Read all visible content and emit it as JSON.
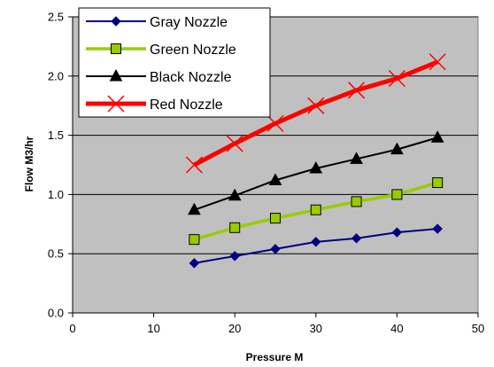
{
  "chart_data": {
    "type": "line",
    "xlabel": "Pressure M",
    "ylabel": "Flow M3/hr",
    "xlim": [
      0,
      50
    ],
    "ylim": [
      0,
      2.5
    ],
    "xticks": [
      "0",
      "10",
      "20",
      "30",
      "40",
      "50"
    ],
    "yticks": [
      "0.0",
      "0.5",
      "1.0",
      "1.5",
      "2.0",
      "2.5"
    ],
    "grid": "horizontal",
    "plot_background": "#C0C0C0",
    "legend_position": "top-left",
    "series": [
      {
        "name": "Gray Nozzle",
        "color": "#000080",
        "marker": "diamond",
        "x": [
          15,
          20,
          25,
          30,
          35,
          40,
          45
        ],
        "values": [
          0.42,
          0.48,
          0.54,
          0.6,
          0.63,
          0.68,
          0.71
        ]
      },
      {
        "name": "Green Nozzle",
        "color": "#99CC00",
        "marker": "square",
        "x": [
          15,
          20,
          25,
          30,
          35,
          40,
          45
        ],
        "values": [
          0.62,
          0.72,
          0.8,
          0.87,
          0.94,
          1.0,
          1.1
        ]
      },
      {
        "name": "Black Nozzle",
        "color": "#000000",
        "marker": "triangle",
        "x": [
          15,
          20,
          25,
          30,
          35,
          40,
          45
        ],
        "values": [
          0.87,
          0.99,
          1.12,
          1.22,
          1.3,
          1.38,
          1.48
        ]
      },
      {
        "name": "Red Nozzle",
        "color": "#FF0000",
        "marker": "x",
        "x": [
          15,
          20,
          25,
          30,
          35,
          40,
          45
        ],
        "values": [
          1.25,
          1.43,
          1.6,
          1.75,
          1.88,
          1.98,
          2.12
        ]
      }
    ]
  }
}
